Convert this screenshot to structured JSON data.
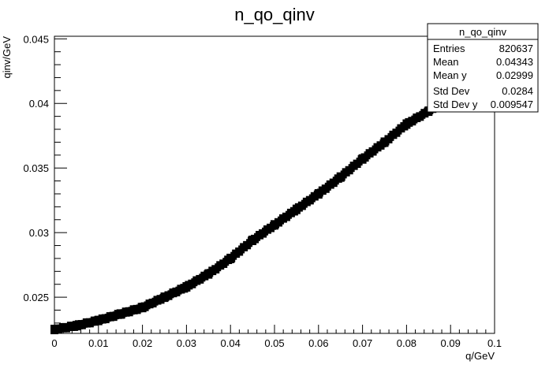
{
  "chart_data": {
    "type": "scatter",
    "title": "n_qo_qinv",
    "xlabel": "q/GeV",
    "ylabel": "qinv/GeV",
    "xlim": [
      0,
      0.1
    ],
    "ylim": [
      0.0222,
      0.0452
    ],
    "x_ticks": [
      "0",
      "0.01",
      "0.02",
      "0.03",
      "0.04",
      "0.05",
      "0.06",
      "0.07",
      "0.08",
      "0.09",
      "0.1"
    ],
    "x_tick_values": [
      0,
      0.01,
      0.02,
      0.03,
      0.04,
      0.05,
      0.06,
      0.07,
      0.08,
      0.09,
      0.1
    ],
    "y_ticks": [
      "0.025",
      "0.03",
      "0.035",
      "0.04",
      "0.045"
    ],
    "y_tick_values": [
      0.025,
      0.03,
      0.035,
      0.04,
      0.045
    ],
    "grid": false,
    "series": [
      {
        "x": [
          0.0,
          0.005,
          0.01,
          0.015,
          0.02,
          0.025,
          0.03,
          0.035,
          0.04,
          0.045,
          0.05,
          0.055,
          0.06,
          0.065,
          0.07,
          0.075,
          0.08,
          0.085,
          0.09
        ],
        "y": [
          0.0225,
          0.0228,
          0.0232,
          0.0237,
          0.0242,
          0.025,
          0.0258,
          0.0268,
          0.028,
          0.0294,
          0.0306,
          0.0318,
          0.033,
          0.0343,
          0.0357,
          0.037,
          0.0384,
          0.0394,
          0.0404
        ]
      }
    ],
    "stats_box": {
      "title": "n_qo_qinv",
      "rows": [
        {
          "label": "Entries",
          "value": "820637"
        },
        {
          "label": "Mean",
          "value": "0.04343"
        },
        {
          "label": "Mean y",
          "value": "0.02999"
        },
        {
          "label": "Std Dev",
          "value": "0.0284"
        },
        {
          "label": "Std Dev y",
          "value": "0.009547"
        }
      ]
    }
  }
}
